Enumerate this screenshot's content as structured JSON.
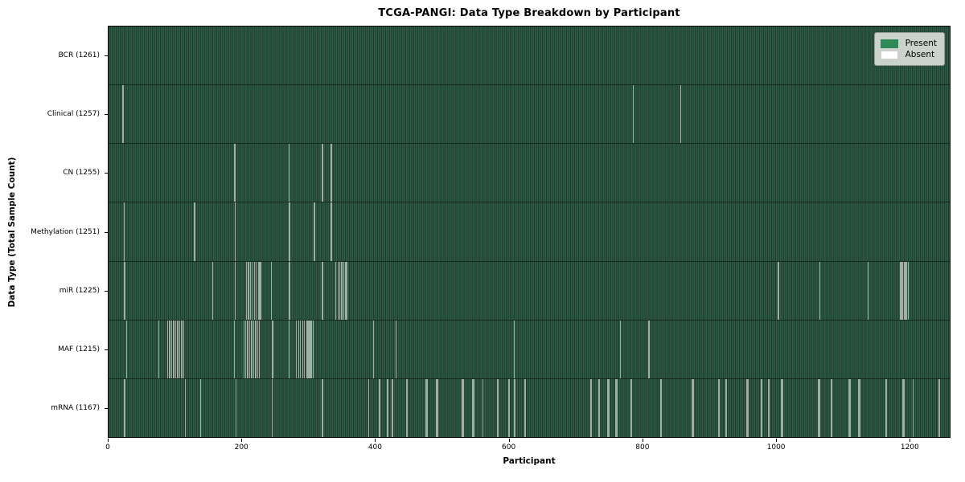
{
  "chart_data": {
    "type": "heatmap",
    "title": "TCGA-PANGI: Data Type Breakdown by Participant",
    "xlabel": "Participant",
    "ylabel": "Data Type (Total Sample Count)",
    "x_range": [
      0,
      1261
    ],
    "x_ticks": [
      0,
      200,
      400,
      600,
      800,
      1000,
      1200
    ],
    "grid": false,
    "legend_position": "upper right",
    "legend": [
      {
        "label": "Present",
        "color": "#2e8b57"
      },
      {
        "label": "Absent",
        "color": "#ffffff"
      }
    ],
    "colors": {
      "present": "#2e8b57",
      "absent": "#ffffff",
      "stripe_light": "#2f5c46",
      "stripe_dark": "#1d3c2c",
      "absent_line": "#a3ada4",
      "row_divider": "#142a1e",
      "spine": "#000000"
    },
    "rows": [
      {
        "name": "BCR",
        "total": 1261,
        "label": "BCR (1261)",
        "absent": []
      },
      {
        "name": "Clinical",
        "total": 1257,
        "label": "Clinical (1257)",
        "absent": [
          20,
          21,
          786,
          857
        ]
      },
      {
        "name": "CN",
        "total": 1255,
        "label": "CN (1255)",
        "absent": [
          188,
          189,
          270,
          320,
          333,
          334
        ]
      },
      {
        "name": "Methylation",
        "total": 1251,
        "label": "Methylation (1251)",
        "absent": [
          23,
          128,
          129,
          189,
          270,
          271,
          308,
          309,
          333,
          334
        ]
      },
      {
        "name": "miR",
        "total": 1225,
        "label": "miR (1225)",
        "absent": [
          23,
          24,
          155,
          189,
          206,
          208,
          210,
          212,
          215,
          218,
          221,
          224,
          226,
          228,
          243,
          270,
          271,
          320,
          340,
          343,
          346,
          349,
          352,
          355,
          357,
          1003,
          1004,
          1066,
          1138,
          1186,
          1188,
          1190,
          1192,
          1194,
          1196,
          1198
        ]
      },
      {
        "name": "MAF",
        "total": 1215,
        "label": "MAF (1215)",
        "absent": [
          26,
          75,
          88,
          91,
          94,
          97,
          100,
          103,
          106,
          109,
          112,
          188,
          203,
          205,
          207,
          209,
          211,
          213,
          215,
          217,
          219,
          221,
          223,
          225,
          245,
          246,
          270,
          281,
          284,
          287,
          290,
          293,
          296,
          298,
          299,
          300,
          301,
          302,
          304,
          306,
          397,
          430,
          608,
          767,
          809,
          810
        ]
      },
      {
        "name": "mRNA",
        "total": 1167,
        "label": "mRNA (1167)",
        "absent": [
          23,
          24,
          115,
          137,
          190,
          245,
          320,
          321,
          389,
          405,
          406,
          417,
          418,
          424,
          425,
          446,
          447,
          475,
          476,
          477,
          491,
          492,
          493,
          529,
          530,
          531,
          532,
          545,
          546,
          547,
          560,
          561,
          582,
          583,
          599,
          600,
          608,
          609,
          623,
          624,
          722,
          723,
          734,
          735,
          748,
          749,
          750,
          760,
          761,
          762,
          783,
          784,
          827,
          828,
          874,
          875,
          876,
          914,
          915,
          925,
          926,
          956,
          957,
          958,
          978,
          979,
          989,
          990,
          1008,
          1009,
          1010,
          1063,
          1064,
          1065,
          1066,
          1082,
          1083,
          1084,
          1109,
          1110,
          1111,
          1124,
          1125,
          1126,
          1164,
          1165,
          1166,
          1190,
          1191,
          1192,
          1205,
          1206,
          1244,
          1245
        ]
      }
    ]
  }
}
